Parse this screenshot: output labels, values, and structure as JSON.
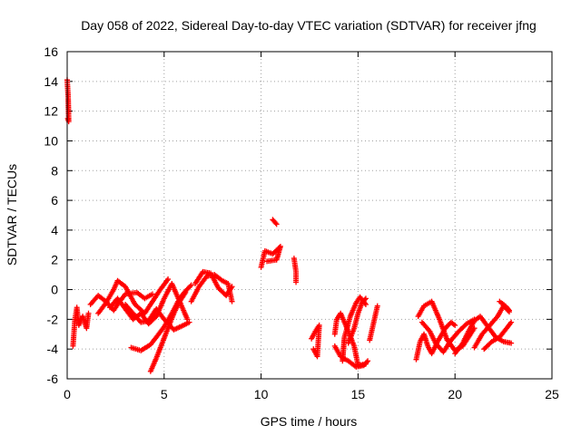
{
  "chart_data": {
    "type": "scatter",
    "title": "Day 058 of 2022, Sidereal Day-to-day VTEC variation (SDTVAR) for receiver jfng",
    "xlabel": "GPS time / hours",
    "ylabel": "SDTVAR / TECUs",
    "xlim": [
      0,
      25
    ],
    "ylim": [
      -6,
      16
    ],
    "xticks": [
      "0",
      "5",
      "10",
      "15",
      "20",
      "25"
    ],
    "yticks": [
      "-6",
      "-4",
      "-2",
      "0",
      "2",
      "4",
      "6",
      "8",
      "10",
      "12",
      "14",
      "16"
    ],
    "grid": true,
    "marker": "plus",
    "color": "#ff0000",
    "traces": [
      [
        [
          0.0,
          14.1
        ],
        [
          0.05,
          13.0
        ],
        [
          0.08,
          11.3
        ],
        [
          0.03,
          11.5
        ]
      ],
      [
        [
          0.3,
          -3.8
        ],
        [
          0.4,
          -2.0
        ],
        [
          0.5,
          -1.2
        ],
        [
          0.6,
          -2.4
        ],
        [
          0.8,
          -1.8
        ],
        [
          1.0,
          -2.6
        ],
        [
          1.1,
          -1.6
        ]
      ],
      [
        [
          1.2,
          -1.0
        ],
        [
          1.6,
          -0.4
        ],
        [
          2.0,
          -0.8
        ],
        [
          2.4,
          -1.4
        ],
        [
          2.6,
          -1.0
        ],
        [
          3.0,
          -0.3
        ],
        [
          3.6,
          -0.2
        ],
        [
          4.0,
          -0.6
        ],
        [
          4.4,
          -0.3
        ]
      ],
      [
        [
          1.6,
          -1.6
        ],
        [
          2.0,
          -0.9
        ],
        [
          2.4,
          0.0
        ],
        [
          2.6,
          0.6
        ],
        [
          3.0,
          0.2
        ],
        [
          3.5,
          -1.0
        ],
        [
          4.0,
          -1.6
        ],
        [
          4.4,
          -0.8
        ],
        [
          4.8,
          0.0
        ],
        [
          5.2,
          0.7
        ]
      ],
      [
        [
          2.2,
          -1.2
        ],
        [
          2.6,
          -0.6
        ],
        [
          3.0,
          -1.3
        ],
        [
          3.4,
          -2.0
        ],
        [
          3.8,
          -1.6
        ],
        [
          4.2,
          -2.3
        ],
        [
          4.6,
          -1.8
        ],
        [
          5.0,
          -0.6
        ],
        [
          5.4,
          0.4
        ],
        [
          5.8,
          -0.8
        ],
        [
          6.2,
          -2.0
        ]
      ],
      [
        [
          3.0,
          -1.0
        ],
        [
          3.4,
          -1.6
        ],
        [
          3.8,
          -2.2
        ],
        [
          4.2,
          -2.1
        ],
        [
          4.6,
          -1.3
        ],
        [
          5.0,
          -2.0
        ],
        [
          5.5,
          -2.7
        ],
        [
          6.0,
          -2.4
        ],
        [
          6.3,
          -2.2
        ]
      ],
      [
        [
          3.3,
          -3.9
        ],
        [
          3.8,
          -4.1
        ],
        [
          4.3,
          -3.7
        ],
        [
          4.6,
          -3.2
        ],
        [
          5.0,
          -2.5
        ],
        [
          5.4,
          -1.6
        ],
        [
          5.8,
          -0.6
        ],
        [
          6.1,
          -0.1
        ],
        [
          6.4,
          0.3
        ]
      ],
      [
        [
          4.3,
          -5.5
        ],
        [
          4.6,
          -4.6
        ],
        [
          4.9,
          -3.6
        ],
        [
          5.2,
          -2.6
        ],
        [
          5.5,
          -1.6
        ],
        [
          5.8,
          -0.8
        ],
        [
          6.1,
          -0.2
        ]
      ],
      [
        [
          6.4,
          -0.8
        ],
        [
          6.8,
          0.2
        ],
        [
          7.2,
          0.9
        ],
        [
          7.6,
          1.0
        ],
        [
          8.0,
          0.6
        ],
        [
          8.3,
          0.4
        ],
        [
          8.5,
          -0.8
        ]
      ],
      [
        [
          6.6,
          0.4
        ],
        [
          7.0,
          1.2
        ],
        [
          7.4,
          1.1
        ],
        [
          7.8,
          0.1
        ],
        [
          8.2,
          -0.4
        ],
        [
          8.5,
          0.2
        ]
      ],
      [
        [
          10.0,
          1.5
        ],
        [
          10.2,
          2.6
        ],
        [
          10.6,
          2.4
        ],
        [
          11.0,
          2.9
        ],
        [
          10.8,
          2.0
        ],
        [
          10.3,
          1.9
        ]
      ],
      [
        [
          10.6,
          4.7
        ],
        [
          10.8,
          4.4
        ]
      ],
      [
        [
          11.7,
          2.1
        ],
        [
          11.8,
          1.2
        ],
        [
          11.8,
          0.5
        ]
      ],
      [
        [
          12.6,
          -3.3
        ],
        [
          12.8,
          -2.8
        ],
        [
          13.0,
          -2.4
        ],
        [
          12.9,
          -4.5
        ],
        [
          12.7,
          -4.0
        ]
      ],
      [
        [
          13.8,
          -3.0
        ],
        [
          13.9,
          -2.0
        ],
        [
          14.1,
          -1.6
        ],
        [
          14.4,
          -2.5
        ],
        [
          14.8,
          -3.8
        ],
        [
          15.0,
          -5.1
        ],
        [
          15.4,
          -5.0
        ]
      ],
      [
        [
          13.8,
          -3.8
        ],
        [
          14.1,
          -4.5
        ],
        [
          14.5,
          -4.8
        ],
        [
          14.9,
          -5.2
        ],
        [
          15.3,
          -5.1
        ],
        [
          15.5,
          -4.8
        ]
      ],
      [
        [
          14.2,
          -4.8
        ],
        [
          14.3,
          -3.2
        ],
        [
          14.6,
          -1.8
        ],
        [
          14.9,
          -0.9
        ],
        [
          15.1,
          -0.5
        ],
        [
          15.4,
          -1.0
        ]
      ],
      [
        [
          14.5,
          -3.6
        ],
        [
          14.8,
          -2.6
        ],
        [
          15.0,
          -1.6
        ],
        [
          15.2,
          -0.9
        ],
        [
          15.4,
          -0.6
        ]
      ],
      [
        [
          15.6,
          -3.4
        ],
        [
          16.0,
          -1.1
        ]
      ],
      [
        [
          18.0,
          -4.7
        ],
        [
          18.2,
          -3.5
        ],
        [
          18.4,
          -3.0
        ],
        [
          18.6,
          -3.8
        ],
        [
          18.8,
          -4.3
        ],
        [
          19.1,
          -3.5
        ],
        [
          19.5,
          -2.6
        ],
        [
          19.8,
          -2.2
        ],
        [
          20.0,
          -2.4
        ]
      ],
      [
        [
          18.1,
          -1.8
        ],
        [
          18.4,
          -1.1
        ],
        [
          18.8,
          -0.8
        ],
        [
          19.2,
          -2.0
        ],
        [
          19.6,
          -3.4
        ],
        [
          20.0,
          -4.1
        ],
        [
          20.4,
          -3.8
        ],
        [
          20.8,
          -3.0
        ],
        [
          21.0,
          -2.6
        ]
      ],
      [
        [
          18.3,
          -2.2
        ],
        [
          18.7,
          -2.8
        ],
        [
          19.0,
          -3.6
        ],
        [
          19.4,
          -4.2
        ],
        [
          19.8,
          -3.4
        ],
        [
          20.2,
          -2.8
        ],
        [
          20.6,
          -2.3
        ],
        [
          21.0,
          -2.0
        ]
      ],
      [
        [
          20.0,
          -4.3
        ],
        [
          20.4,
          -3.6
        ],
        [
          20.7,
          -2.8
        ],
        [
          21.0,
          -2.1
        ],
        [
          21.3,
          -1.8
        ],
        [
          21.7,
          -2.5
        ],
        [
          22.1,
          -3.2
        ],
        [
          22.5,
          -3.5
        ],
        [
          22.9,
          -3.6
        ]
      ],
      [
        [
          21.0,
          -3.9
        ],
        [
          21.4,
          -3.0
        ],
        [
          21.8,
          -2.4
        ],
        [
          22.2,
          -1.8
        ],
        [
          22.5,
          -1.1
        ],
        [
          22.8,
          -1.5
        ]
      ],
      [
        [
          21.5,
          -4.0
        ],
        [
          21.9,
          -3.5
        ],
        [
          22.3,
          -3.2
        ],
        [
          22.6,
          -2.7
        ],
        [
          22.9,
          -2.2
        ]
      ],
      [
        [
          22.3,
          -0.8
        ],
        [
          22.6,
          -1.1
        ],
        [
          22.8,
          -1.4
        ]
      ]
    ]
  }
}
